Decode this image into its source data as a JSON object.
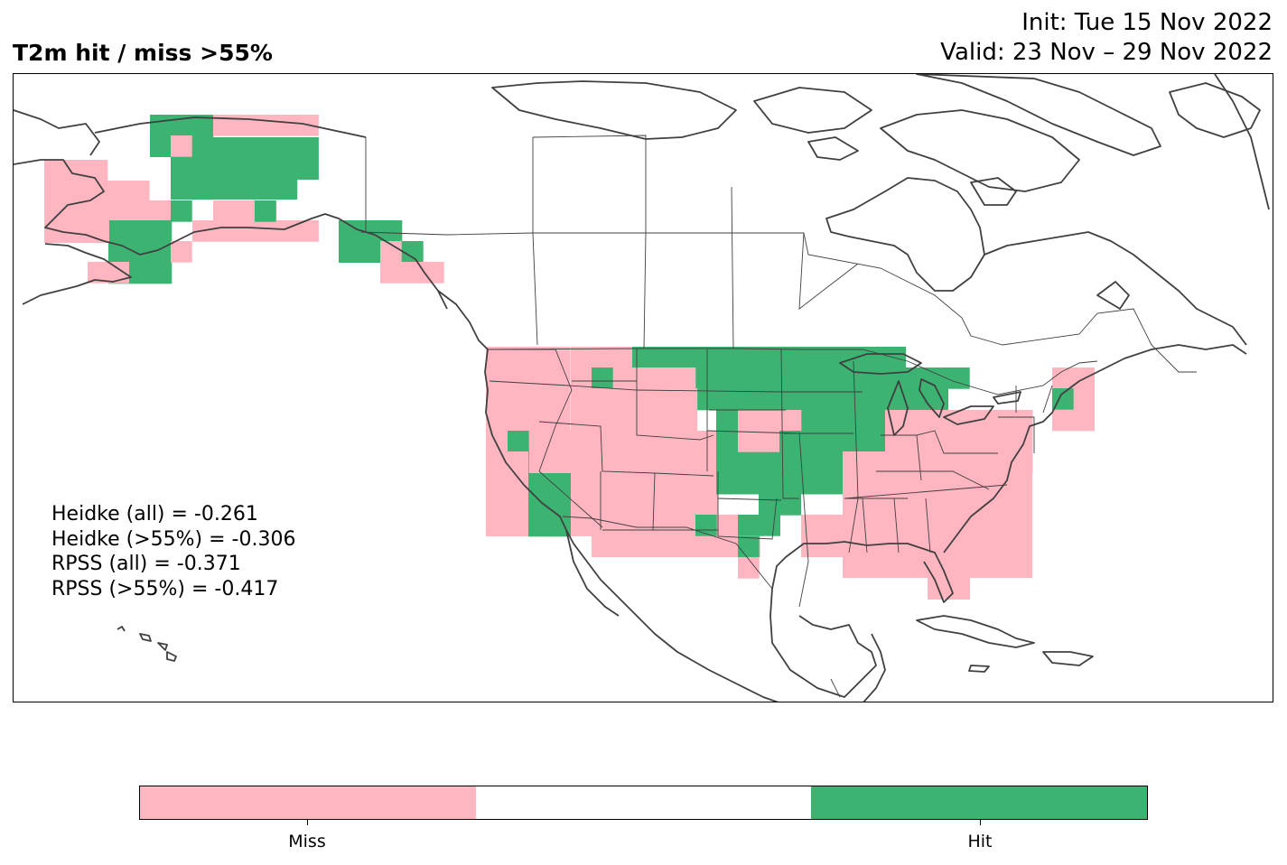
{
  "header": {
    "title": "T2m hit / miss  >55%",
    "init": "Init: Tue 15 Nov 2022",
    "valid": "Valid: 23 Nov – 29 Nov 2022"
  },
  "stats": {
    "heidke_all": "Heidke (all) = -0.261",
    "heidke_55": "Heidke (>55%) = -0.306",
    "rpss_all": "RPSS (all) = -0.371",
    "rpss_55": "RPSS (>55%) = -0.417"
  },
  "colors": {
    "miss": "#ffb6c1",
    "neutral": "#ffffff",
    "hit": "#3cb371",
    "coast": "#404040"
  },
  "colorbar": {
    "labels": [
      "Miss",
      "Hit"
    ],
    "segments": [
      "miss",
      "neutral",
      "hit"
    ]
  },
  "map": {
    "projection": "plate-carree",
    "extent": {
      "lon_min": -180,
      "lon_max": -60,
      "lat_min": 10,
      "lat_max": 70
    },
    "grid_step_deg": 2,
    "legend": {
      "miss": "Miss",
      "hit": "Hit"
    }
  }
}
